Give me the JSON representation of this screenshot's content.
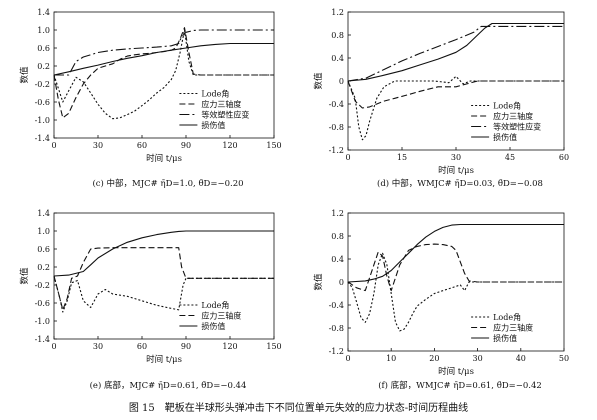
{
  "figure_caption": "图 15　靶板在半球形头弹冲击下不同位置单元失效的应力状态-时间历程曲线",
  "chart_data": [
    {
      "type": "line",
      "panel_caption": "(c) 中部，MJC# η̄D=1.0, θ̄D=−0.20",
      "xlabel": "时间 t/μs",
      "ylabel": "数值",
      "xlim": [
        0,
        150
      ],
      "ylim": [
        -1.4,
        1.4
      ],
      "xticks": [
        "0",
        "30",
        "60",
        "90",
        "120",
        "150"
      ],
      "yticks": [
        "-1.4",
        "-1.0",
        "-0.6",
        "-0.2",
        "0.2",
        "0.6",
        "1.0",
        "1.4"
      ],
      "legend_position": "lower-right",
      "series": [
        {
          "name": "Lode角",
          "dash": "2,2",
          "x": [
            0,
            3,
            6,
            10,
            15,
            20,
            25,
            30,
            35,
            40,
            45,
            50,
            55,
            60,
            65,
            70,
            75,
            80,
            83,
            86,
            89,
            92,
            95,
            100,
            110,
            120,
            130,
            140,
            150
          ],
          "y": [
            0.0,
            -0.3,
            -0.6,
            -0.35,
            -0.05,
            -0.15,
            -0.4,
            -0.65,
            -0.85,
            -0.97,
            -0.95,
            -0.88,
            -0.8,
            -0.68,
            -0.55,
            -0.4,
            -0.28,
            -0.1,
            0.1,
            0.5,
            1.0,
            0.3,
            0.0,
            0.0,
            0.0,
            0.0,
            0.0,
            0.0,
            0.0
          ]
        },
        {
          "name": "应力三轴度",
          "dash": "6,3",
          "x": [
            0,
            3,
            6,
            10,
            15,
            20,
            25,
            30,
            35,
            40,
            45,
            50,
            55,
            60,
            65,
            70,
            75,
            80,
            83,
            86,
            89,
            92,
            95,
            100,
            110,
            120,
            130,
            140,
            150
          ],
          "y": [
            0.0,
            -0.55,
            -0.95,
            -0.85,
            -0.5,
            -0.2,
            0.0,
            0.15,
            0.2,
            0.25,
            0.35,
            0.42,
            0.45,
            0.47,
            0.48,
            0.5,
            0.52,
            0.55,
            0.6,
            0.8,
            1.05,
            0.5,
            0.02,
            0.0,
            0.0,
            0.0,
            0.0,
            0.0,
            0.0
          ]
        },
        {
          "name": "等效塑性应变",
          "dash": "10,3,2,3",
          "x": [
            0,
            10,
            15,
            20,
            25,
            30,
            40,
            50,
            60,
            70,
            80,
            85,
            87,
            90,
            95,
            100,
            110,
            120,
            130,
            140,
            150
          ],
          "y": [
            0.0,
            0.0,
            0.3,
            0.4,
            0.45,
            0.5,
            0.55,
            0.58,
            0.6,
            0.62,
            0.65,
            0.7,
            0.85,
            0.95,
            0.99,
            1.0,
            1.0,
            1.0,
            1.0,
            1.0,
            1.0
          ]
        },
        {
          "name": "损伤值",
          "dash": "",
          "x": [
            0,
            10,
            20,
            30,
            40,
            50,
            60,
            70,
            80,
            90,
            100,
            110,
            120,
            130,
            140,
            150
          ],
          "y": [
            0.0,
            0.07,
            0.15,
            0.22,
            0.3,
            0.37,
            0.43,
            0.5,
            0.55,
            0.6,
            0.65,
            0.68,
            0.7,
            0.7,
            0.7,
            0.7
          ]
        }
      ]
    },
    {
      "type": "line",
      "panel_caption": "(d) 中部，WMJC# η̄D=0.03, θ̄D=−0.08",
      "xlabel": "时间 t/μs",
      "ylabel": "数值",
      "xlim": [
        0,
        60
      ],
      "ylim": [
        -1.2,
        1.2
      ],
      "xticks": [
        "0",
        "15",
        "30",
        "45",
        "60"
      ],
      "yticks": [
        "-1.2",
        "-0.8",
        "-0.4",
        "0",
        "0.4",
        "0.8",
        "1.2"
      ],
      "legend_position": "lower-right",
      "series": [
        {
          "name": "Lode角",
          "dash": "2,2",
          "x": [
            0,
            2,
            3,
            4,
            5,
            6,
            8,
            10,
            13,
            16,
            20,
            24,
            28,
            30,
            32,
            34,
            36,
            40,
            45,
            50,
            55,
            60
          ],
          "y": [
            0.0,
            -0.3,
            -0.8,
            -1.02,
            -0.95,
            -0.7,
            -0.3,
            -0.1,
            0.0,
            0.0,
            0.0,
            0.0,
            -0.03,
            0.08,
            -0.05,
            0.0,
            0.0,
            0.0,
            0.0,
            0.0,
            0.0,
            0.0
          ]
        },
        {
          "name": "应力三轴度",
          "dash": "6,3",
          "x": [
            0,
            2,
            4,
            6,
            8,
            10,
            13,
            16,
            20,
            25,
            30,
            33,
            36,
            38,
            40,
            45,
            50,
            55,
            60
          ],
          "y": [
            0.0,
            -0.35,
            -0.47,
            -0.45,
            -0.4,
            -0.35,
            -0.3,
            -0.25,
            -0.18,
            -0.1,
            -0.1,
            -0.05,
            0.0,
            0.0,
            0.0,
            0.0,
            0.0,
            0.0,
            0.0
          ]
        },
        {
          "name": "等效塑性应变",
          "dash": "10,3,2,3",
          "x": [
            0,
            5,
            10,
            15,
            20,
            25,
            30,
            35,
            37,
            40,
            45,
            50,
            55,
            60
          ],
          "y": [
            0.0,
            0.05,
            0.2,
            0.35,
            0.48,
            0.6,
            0.72,
            0.85,
            0.95,
            0.95,
            0.95,
            0.95,
            0.95,
            0.95
          ]
        },
        {
          "name": "损伤值",
          "dash": "",
          "x": [
            0,
            5,
            10,
            15,
            20,
            25,
            30,
            33,
            36,
            38,
            40,
            45,
            50,
            55,
            60
          ],
          "y": [
            0.0,
            0.03,
            0.1,
            0.18,
            0.28,
            0.38,
            0.5,
            0.62,
            0.8,
            0.92,
            1.0,
            1.0,
            1.0,
            1.0,
            1.0
          ]
        }
      ]
    },
    {
      "type": "line",
      "panel_caption": "(e) 底部，MJC# η̄D=0.61, θ̄D=−0.44",
      "xlabel": "时间 t/μs",
      "ylabel": "数值",
      "xlim": [
        0,
        150
      ],
      "ylim": [
        -1.4,
        1.4
      ],
      "xticks": [
        "0",
        "30",
        "60",
        "90",
        "120",
        "150"
      ],
      "yticks": [
        "-1.4",
        "-1.0",
        "-0.6",
        "-0.2",
        "0.2",
        "0.6",
        "1.0",
        "1.4"
      ],
      "legend_position": "lower-right",
      "series": [
        {
          "name": "Lode角",
          "dash": "2,2",
          "x": [
            0,
            4,
            6,
            9,
            12,
            16,
            20,
            25,
            30,
            35,
            40,
            50,
            60,
            70,
            80,
            85,
            88,
            90,
            100,
            110,
            120,
            130,
            140,
            150
          ],
          "y": [
            0.0,
            -0.5,
            -0.8,
            -0.55,
            -0.15,
            -0.1,
            -0.55,
            -0.7,
            -0.4,
            -0.3,
            -0.4,
            -0.45,
            -0.55,
            -0.65,
            -0.72,
            -0.75,
            -0.2,
            -0.05,
            -0.05,
            -0.05,
            -0.05,
            -0.05,
            -0.05,
            -0.05
          ]
        },
        {
          "name": "应力三轴度",
          "dash": "6,3",
          "x": [
            0,
            4,
            6,
            9,
            12,
            16,
            20,
            25,
            30,
            40,
            50,
            60,
            70,
            80,
            85,
            87,
            90,
            100,
            110,
            120,
            130,
            140,
            150
          ],
          "y": [
            0.0,
            -0.5,
            -0.75,
            -0.5,
            -0.05,
            0.0,
            0.3,
            0.6,
            0.62,
            0.63,
            0.63,
            0.63,
            0.63,
            0.63,
            0.63,
            0.2,
            -0.05,
            -0.05,
            -0.05,
            -0.05,
            -0.05,
            -0.05,
            -0.05
          ]
        },
        {
          "name": "损伤值",
          "dash": "",
          "x": [
            0,
            10,
            20,
            25,
            30,
            40,
            50,
            60,
            70,
            80,
            85,
            90,
            100,
            110,
            120,
            130,
            140,
            150
          ],
          "y": [
            0.0,
            0.02,
            0.1,
            0.25,
            0.4,
            0.6,
            0.75,
            0.85,
            0.92,
            0.97,
            0.99,
            1.0,
            1.0,
            1.0,
            1.0,
            1.0,
            1.0,
            1.0
          ]
        }
      ]
    },
    {
      "type": "line",
      "panel_caption": "(f) 底部，WMJC# η̄D=0.61, θ̄D=−0.42",
      "xlabel": "时间 t/μs",
      "ylabel": "数值",
      "xlim": [
        0,
        50
      ],
      "ylim": [
        -1.2,
        1.2
      ],
      "xticks": [
        "0",
        "10",
        "20",
        "30",
        "40",
        "50"
      ],
      "yticks": [
        "-1.2",
        "-0.8",
        "-0.4",
        "0",
        "0.4",
        "0.8",
        "1.2"
      ],
      "legend_position": "lower-right",
      "series": [
        {
          "name": "Lode角",
          "dash": "2,2",
          "x": [
            0,
            1,
            2,
            3,
            4,
            5,
            6,
            7,
            8,
            9,
            10,
            11,
            12,
            13,
            14,
            15,
            16,
            18,
            20,
            22,
            24,
            26,
            27,
            28,
            30,
            35,
            40,
            45,
            50
          ],
          "y": [
            0.0,
            -0.1,
            -0.35,
            -0.62,
            -0.7,
            -0.55,
            -0.2,
            0.3,
            0.5,
            0.3,
            -0.2,
            -0.7,
            -0.85,
            -0.82,
            -0.7,
            -0.55,
            -0.42,
            -0.3,
            -0.2,
            -0.15,
            -0.1,
            -0.05,
            -0.15,
            0.0,
            0.0,
            0.0,
            0.0,
            0.0,
            0.0
          ]
        },
        {
          "name": "应力三轴度",
          "dash": "6,3",
          "x": [
            0,
            2,
            4,
            6,
            7,
            8,
            9,
            10,
            12,
            14,
            16,
            18,
            20,
            22,
            24,
            25,
            26,
            27,
            28,
            30,
            35,
            40,
            45,
            50
          ],
          "y": [
            0.0,
            -0.1,
            -0.15,
            0.3,
            0.52,
            0.45,
            0.1,
            -0.15,
            0.3,
            0.55,
            0.62,
            0.65,
            0.66,
            0.65,
            0.62,
            0.55,
            0.35,
            0.15,
            0.02,
            0.0,
            0.0,
            0.0,
            0.0,
            0.0
          ]
        },
        {
          "name": "损伤值",
          "dash": "",
          "x": [
            0,
            4,
            6,
            8,
            10,
            12,
            14,
            16,
            18,
            20,
            22,
            24,
            26,
            28,
            30,
            35,
            40,
            45,
            50
          ],
          "y": [
            0.0,
            0.02,
            0.05,
            0.1,
            0.2,
            0.35,
            0.5,
            0.65,
            0.78,
            0.88,
            0.95,
            0.99,
            1.0,
            1.0,
            1.0,
            1.0,
            1.0,
            1.0,
            1.0
          ]
        }
      ]
    }
  ]
}
